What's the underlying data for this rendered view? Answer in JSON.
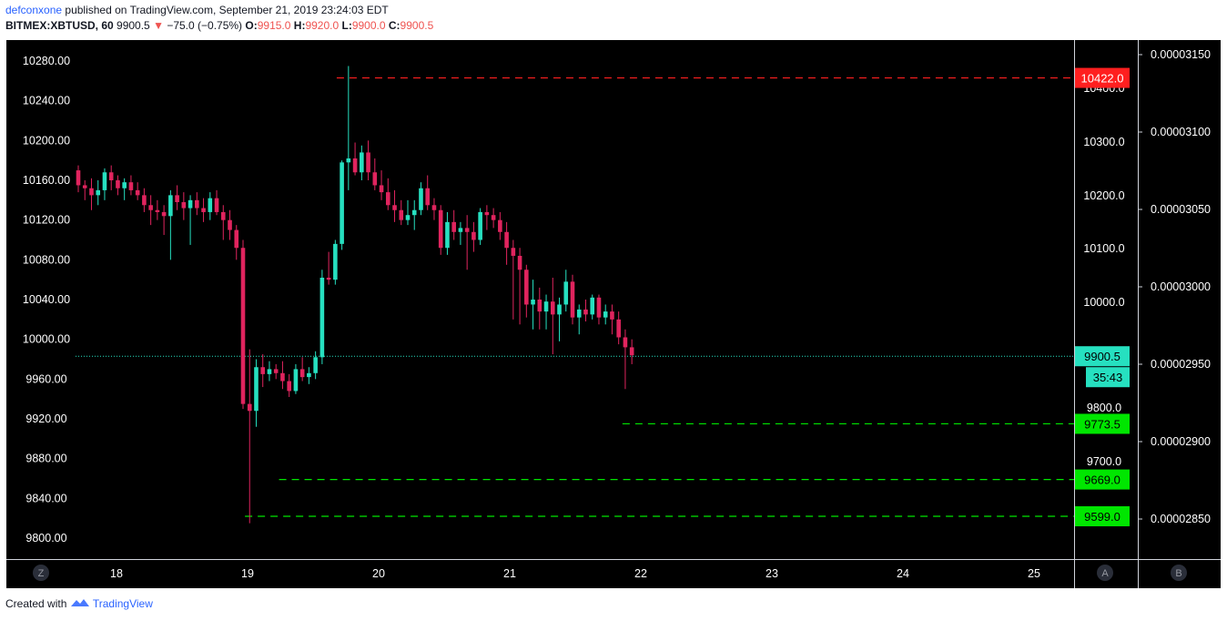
{
  "header": {
    "user": "defconxone",
    "published_text": "published on TradingView.com, September 21, 2019 23:24:03 EDT",
    "symbol": "BITMEX:XBTUSD, 60",
    "last": "9900.5",
    "arrow": "▼",
    "change": "−75.0 (−0.75%)",
    "o_label": "O:",
    "o": "9915.0",
    "h_label": "H:",
    "h": "9920.0",
    "l_label": "L:",
    "l": "9900.0",
    "c_label": "C:",
    "c": "9900.5"
  },
  "footer": {
    "created_with": "Created with",
    "brand": "TradingView"
  },
  "buttons": {
    "z": "Z",
    "a": "A",
    "b": "B"
  },
  "colors": {
    "background": "#000000",
    "up": "#26e0c0",
    "down": "#e0245e",
    "resistance": "#ff1f1f",
    "support": "#00e600",
    "last_price": "#26e0c0"
  },
  "chart_data": {
    "type": "candlestick",
    "left_axis": {
      "ylim": [
        9780,
        10300
      ],
      "ticks": [
        "10280.00",
        "10240.00",
        "10200.00",
        "10160.00",
        "10120.00",
        "10080.00",
        "10040.00",
        "10000.00",
        "9960.00",
        "9920.00",
        "9880.00",
        "9840.00",
        "9800.00"
      ]
    },
    "inner_axis": {
      "ticks": [
        "10400.0",
        "10300.0",
        "10200.0",
        "10100.0",
        "10000.0",
        "9800.0",
        "9700.0"
      ]
    },
    "right_axis": {
      "ticks": [
        "0.00003150",
        "0.00003100",
        "0.00003050",
        "0.00003000",
        "0.00002950",
        "0.00002900",
        "0.00002850"
      ]
    },
    "x_ticks": [
      "18",
      "19",
      "20",
      "21",
      "22",
      "23",
      "24",
      "25"
    ],
    "x_range": [
      17.3,
      25.25
    ],
    "levels": [
      {
        "label": "10422.0",
        "price": 10263,
        "start": 19.68,
        "kind": "resistance"
      },
      {
        "label": "9773.5",
        "price": 9915,
        "start": 21.86,
        "kind": "support"
      },
      {
        "label": "9669.0",
        "price": 9859,
        "start": 19.24,
        "kind": "support"
      },
      {
        "label": "9599.0",
        "price": 9822,
        "start": 18.98,
        "kind": "support"
      }
    ],
    "last_price": {
      "label": "9900.5",
      "price": 9983,
      "countdown": "35:43"
    },
    "candles": [
      [
        10170,
        10175,
        10148,
        10155
      ],
      [
        10155,
        10160,
        10140,
        10152
      ],
      [
        10152,
        10162,
        10130,
        10145
      ],
      [
        10145,
        10160,
        10135,
        10150
      ],
      [
        10150,
        10172,
        10140,
        10168
      ],
      [
        10168,
        10175,
        10150,
        10160
      ],
      [
        10160,
        10165,
        10145,
        10152
      ],
      [
        10152,
        10162,
        10140,
        10158
      ],
      [
        10158,
        10165,
        10145,
        10150
      ],
      [
        10150,
        10158,
        10140,
        10145
      ],
      [
        10145,
        10152,
        10128,
        10135
      ],
      [
        10135,
        10145,
        10115,
        10130
      ],
      [
        10130,
        10140,
        10120,
        10128
      ],
      [
        10128,
        10135,
        10105,
        10124
      ],
      [
        10124,
        10150,
        10080,
        10145
      ],
      [
        10145,
        10155,
        10130,
        10138
      ],
      [
        10138,
        10148,
        10120,
        10132
      ],
      [
        10132,
        10145,
        10095,
        10140
      ],
      [
        10140,
        10148,
        10125,
        10132
      ],
      [
        10132,
        10142,
        10118,
        10128
      ],
      [
        10128,
        10148,
        10120,
        10142
      ],
      [
        10142,
        10150,
        10125,
        10128
      ],
      [
        10128,
        10135,
        10100,
        10120
      ],
      [
        10120,
        10130,
        10100,
        10110
      ],
      [
        10110,
        10115,
        10080,
        10092
      ],
      [
        10092,
        10100,
        9930,
        9935
      ],
      [
        9935,
        9990,
        9815,
        9928
      ],
      [
        9928,
        9980,
        9912,
        9972
      ],
      [
        9972,
        9985,
        9952,
        9965
      ],
      [
        9965,
        9978,
        9958,
        9970
      ],
      [
        9970,
        9975,
        9960,
        9966
      ],
      [
        9966,
        9978,
        9950,
        9958
      ],
      [
        9958,
        9965,
        9942,
        9948
      ],
      [
        9948,
        9975,
        9945,
        9970
      ],
      [
        9970,
        9982,
        9958,
        9962
      ],
      [
        9962,
        9972,
        9955,
        9966
      ],
      [
        9966,
        9988,
        9960,
        9982
      ],
      [
        9982,
        10070,
        9975,
        10062
      ],
      [
        10062,
        10088,
        10055,
        10060
      ],
      [
        10060,
        10100,
        10055,
        10096
      ],
      [
        10096,
        10180,
        10090,
        10178
      ],
      [
        10178,
        10275,
        10150,
        10182
      ],
      [
        10182,
        10198,
        10165,
        10168
      ],
      [
        10168,
        10195,
        10160,
        10188
      ],
      [
        10188,
        10200,
        10160,
        10168
      ],
      [
        10168,
        10182,
        10150,
        10155
      ],
      [
        10155,
        10170,
        10140,
        10148
      ],
      [
        10148,
        10162,
        10130,
        10135
      ],
      [
        10135,
        10150,
        10118,
        10130
      ],
      [
        10130,
        10140,
        10115,
        10120
      ],
      [
        10120,
        10140,
        10115,
        10125
      ],
      [
        10125,
        10140,
        10110,
        10130
      ],
      [
        10130,
        10158,
        10125,
        10152
      ],
      [
        10152,
        10165,
        10130,
        10135
      ],
      [
        10135,
        10142,
        10120,
        10130
      ],
      [
        10130,
        10135,
        10085,
        10092
      ],
      [
        10092,
        10128,
        10085,
        10118
      ],
      [
        10118,
        10130,
        10100,
        10108
      ],
      [
        10108,
        10118,
        10095,
        10112
      ],
      [
        10112,
        10125,
        10070,
        10108
      ],
      [
        10108,
        10118,
        10088,
        10100
      ],
      [
        10100,
        10132,
        10095,
        10128
      ],
      [
        10128,
        10135,
        10110,
        10125
      ],
      [
        10125,
        10132,
        10112,
        10120
      ],
      [
        10120,
        10128,
        10100,
        10108
      ],
      [
        10108,
        10118,
        10075,
        10092
      ],
      [
        10092,
        10100,
        10020,
        10084
      ],
      [
        10084,
        10092,
        10015,
        10070
      ],
      [
        10070,
        10075,
        10022,
        10035
      ],
      [
        10035,
        10060,
        10010,
        10040
      ],
      [
        10040,
        10052,
        10010,
        10028
      ],
      [
        10028,
        10045,
        10010,
        10038
      ],
      [
        10038,
        10062,
        9985,
        10025
      ],
      [
        10025,
        10042,
        9998,
        10035
      ],
      [
        10035,
        10070,
        10028,
        10058
      ],
      [
        10058,
        10065,
        10015,
        10022
      ],
      [
        10022,
        10035,
        10005,
        10030
      ],
      [
        10030,
        10040,
        10018,
        10025
      ],
      [
        10025,
        10045,
        10020,
        10042
      ],
      [
        10042,
        10045,
        10015,
        10022
      ],
      [
        10022,
        10035,
        10015,
        10028
      ],
      [
        10028,
        10035,
        10005,
        10020
      ],
      [
        10020,
        10028,
        9995,
        10002
      ],
      [
        10002,
        10010,
        9950,
        9992
      ],
      [
        9992,
        10000,
        9975,
        9984
      ]
    ]
  }
}
